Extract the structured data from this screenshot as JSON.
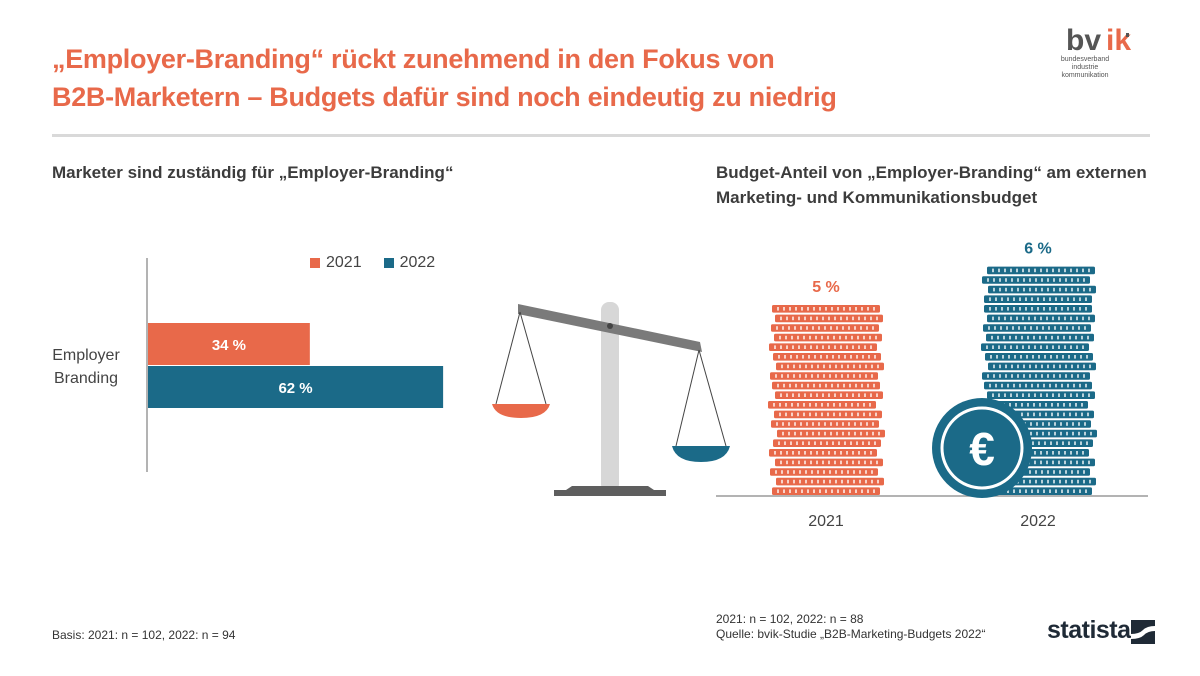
{
  "header": {
    "title_line1": "„Employer-Branding“ rückt zunehmend in den Fokus von",
    "title_line2": "B2B-Marketern – Budgets dafür sind noch eindeutig zu niedrig",
    "logo_text": "bvik",
    "logo_tagline_1": "bundesverband",
    "logo_tagline_2": "industrie kommunikation"
  },
  "left_panel": {
    "subtitle": "Marketer sind zuständig für „Employer-Branding“",
    "footnote": "Basis: 2021: n = 102, 2022: n = 94"
  },
  "right_panel": {
    "subtitle_line1": "Budget-Anteil von „Employer-Branding“ am externen",
    "subtitle_line2": "Marketing- und Kommunikationsbudget",
    "footnote_line1": "2021: n = 102, 2022: n = 88",
    "footnote_line2": "Quelle: bvik-Studie „B2B-Marketing-Budgets 2022“",
    "euro_symbol": "€"
  },
  "brand": {
    "statista": "statista"
  },
  "colors": {
    "accent": "#e8694a",
    "teal": "#1b6a88",
    "grey": "#8a8a8a",
    "title": "#e8694a"
  },
  "icons": {
    "scale": "balance-scale-icon",
    "coins": "coin-stack-icon",
    "euro": "euro-coin-icon"
  },
  "chart_data": [
    {
      "type": "bar",
      "orientation": "horizontal",
      "categories": [
        "Employer Branding"
      ],
      "series": [
        {
          "name": "2021",
          "values": [
            34
          ],
          "labels": [
            "34 %"
          ],
          "color": "#e8694a"
        },
        {
          "name": "2022",
          "values": [
            62
          ],
          "labels": [
            "62 %"
          ],
          "color": "#1b6a88"
        }
      ],
      "unit": "%",
      "xlim": [
        0,
        100
      ],
      "legend": "top-right",
      "grid": false
    },
    {
      "type": "bar",
      "categories": [
        "2021",
        "2022"
      ],
      "values": [
        5,
        6
      ],
      "labels": [
        "5 %",
        "6 %"
      ],
      "colors": [
        "#e8694a",
        "#1b6a88"
      ],
      "unit": "%",
      "style": "coin-stacks"
    }
  ]
}
